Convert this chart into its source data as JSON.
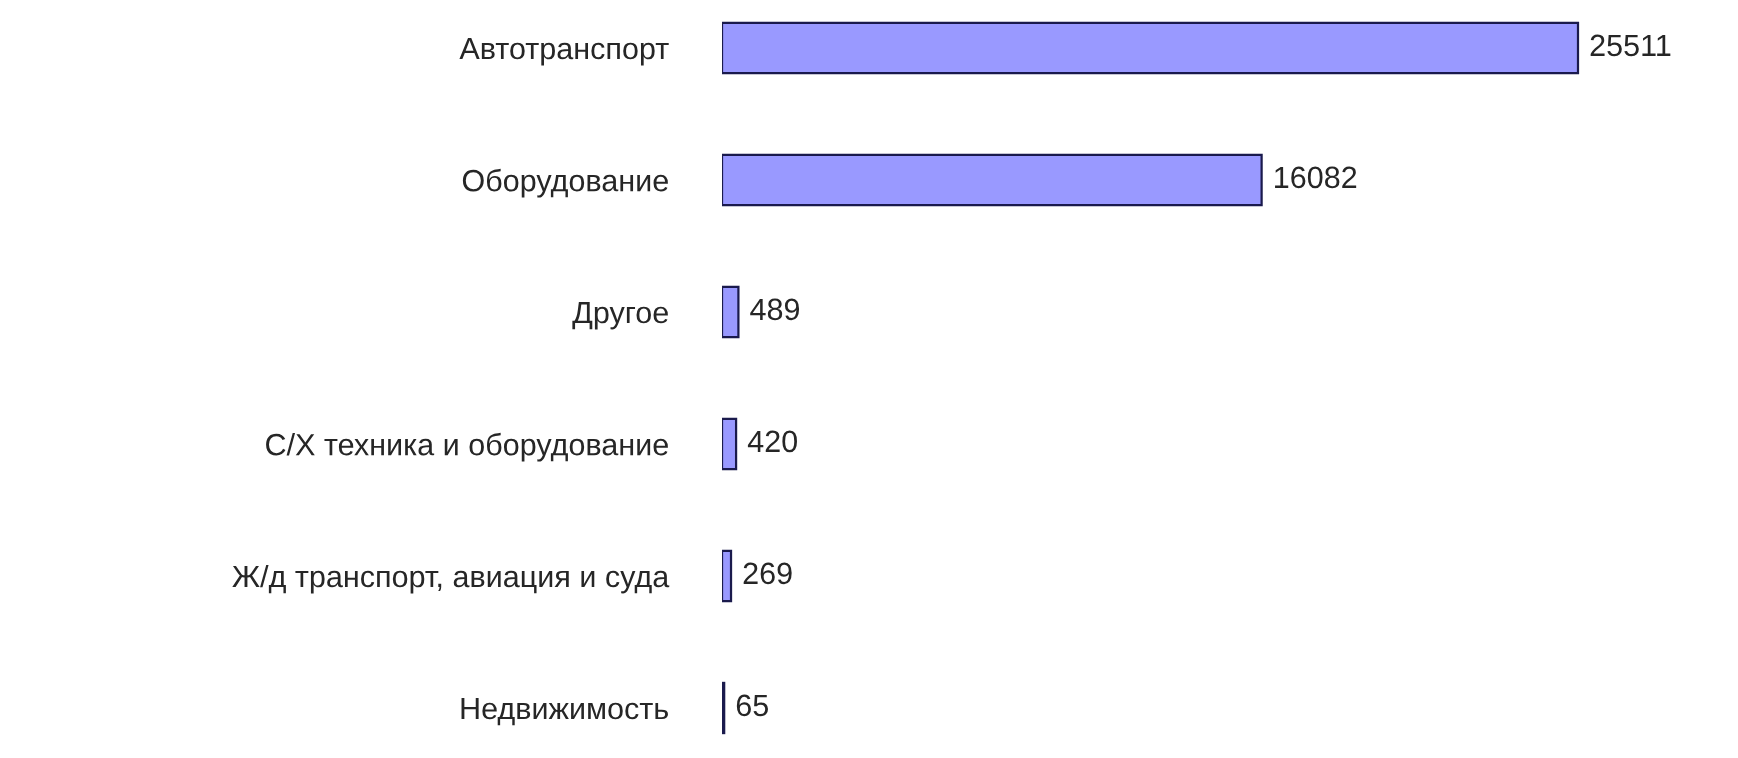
{
  "chart_data": {
    "type": "bar",
    "orientation": "horizontal",
    "data_labels": true,
    "grid": false,
    "legend": false,
    "color": "#9999ff",
    "categories": [
      "Автотранспорт",
      "Оборудование",
      "Другое",
      "С/Х техника и оборудование",
      "Ж/д транспорт, авиация и суда",
      "Недвижимость"
    ],
    "values": [
      25511,
      16082,
      489,
      420,
      269,
      65
    ]
  }
}
